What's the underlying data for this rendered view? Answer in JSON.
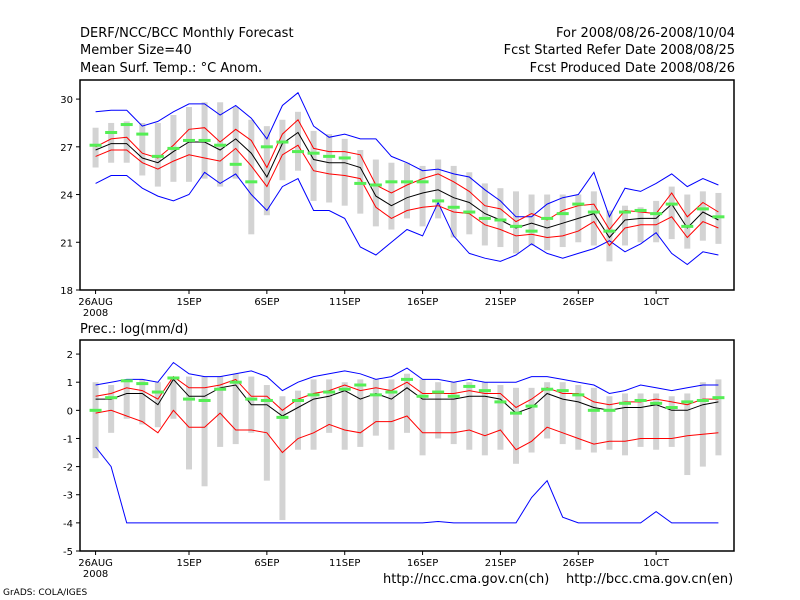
{
  "header": {
    "title": "DERF/NCC/BCC Monthly Forecast",
    "member_size": "Member Size=40",
    "variable": "Mean Surf. Temp.: °C Anom.",
    "period": "For 2008/08/26-2008/10/04",
    "started": "Fcst Started Refer Date 2008/08/25",
    "produced": "Fcst Produced Date 2008/08/26"
  },
  "precip_title": "Prec.: log(mm/d)",
  "footer": {
    "url_ncc": "http://ncc.cma.gov.cn(ch)",
    "url_bcc": "http://bcc.cma.gov.cn(en)",
    "credit": "GrADS: COLA/IGES"
  },
  "colors": {
    "envelope": "#0000ff",
    "spread": "#ff0000",
    "mean": "#000000",
    "box": "#d3d3d3",
    "marker": "#55ee55"
  },
  "chart_data": [
    {
      "type": "line",
      "title": "Mean Surf. Temp.: °C Anom.",
      "x_ticks": [
        {
          "day": 0,
          "label": "26AUG",
          "sublabel": "2008"
        },
        {
          "day": 6,
          "label": "1SEP"
        },
        {
          "day": 11,
          "label": "6SEP"
        },
        {
          "day": 16,
          "label": "11SEP"
        },
        {
          "day": 21,
          "label": "16SEP"
        },
        {
          "day": 26,
          "label": "21SEP"
        },
        {
          "day": 31,
          "label": "26SEP"
        },
        {
          "day": 36,
          "label": "10CT"
        }
      ],
      "y_ticks": [
        18,
        21,
        24,
        27,
        30
      ],
      "ylim": [
        18,
        31.2
      ],
      "xlim": [
        -1,
        41
      ],
      "series": [
        {
          "name": "max",
          "values": [
            24.7,
            25.2,
            25.2,
            24.4,
            23.9,
            23.6,
            24.0,
            25.4,
            24.7,
            25.3,
            24.0,
            23.0,
            24.5,
            25.0,
            23.0,
            23.0,
            22.5,
            20.7,
            20.2,
            21.0,
            21.8,
            21.4,
            23.5,
            21.4,
            20.3,
            20.0,
            19.8,
            20.2,
            20.9,
            20.3,
            20.0,
            20.3,
            20.6,
            21.1,
            20.4,
            20.9,
            21.6,
            20.3,
            19.6,
            20.4,
            20.2
          ]
        },
        {
          "name": "min",
          "values": [
            29.2,
            29.3,
            29.3,
            28.3,
            28.6,
            29.2,
            29.7,
            29.7,
            29.0,
            29.6,
            28.8,
            27.5,
            29.6,
            30.4,
            28.3,
            27.6,
            27.8,
            27.5,
            27.5,
            26.4,
            26.0,
            25.5,
            25.6,
            25.3,
            25.1,
            24.3,
            23.6,
            22.6,
            22.6,
            23.4,
            23.8,
            24.0,
            25.4,
            22.6,
            24.4,
            24.2,
            24.7,
            25.3,
            24.5,
            25.0,
            24.6
          ]
        },
        {
          "name": "upper",
          "values": [
            27.0,
            27.5,
            27.6,
            26.6,
            26.3,
            27.1,
            28.1,
            28.2,
            27.3,
            28.1,
            27.4,
            25.7,
            27.8,
            28.7,
            26.9,
            26.7,
            26.7,
            26.5,
            24.6,
            24.1,
            24.6,
            25.0,
            25.3,
            24.8,
            24.2,
            23.3,
            23.1,
            22.3,
            22.8,
            22.4,
            23.0,
            23.3,
            23.4,
            21.8,
            23.0,
            22.9,
            22.8,
            24.1,
            22.6,
            23.5,
            22.9
          ]
        },
        {
          "name": "lower",
          "values": [
            26.4,
            26.8,
            26.8,
            26.0,
            25.6,
            26.1,
            26.5,
            26.3,
            26.1,
            26.9,
            25.8,
            24.5,
            26.5,
            27.1,
            25.5,
            25.3,
            25.2,
            25.0,
            23.2,
            22.5,
            23.0,
            23.2,
            23.3,
            22.9,
            22.8,
            22.1,
            21.8,
            21.4,
            21.5,
            21.3,
            21.4,
            21.7,
            22.3,
            20.8,
            21.9,
            22.1,
            22.1,
            22.6,
            21.3,
            22.3,
            21.9
          ]
        },
        {
          "name": "mean",
          "values": [
            26.8,
            27.2,
            27.2,
            26.3,
            26.0,
            26.7,
            27.3,
            27.3,
            26.8,
            27.5,
            26.6,
            25.1,
            27.2,
            27.9,
            26.2,
            26.0,
            26.0,
            25.7,
            23.9,
            23.3,
            23.8,
            24.1,
            24.3,
            23.8,
            23.5,
            22.8,
            22.4,
            21.9,
            22.2,
            21.9,
            22.2,
            22.5,
            22.8,
            21.3,
            22.4,
            22.5,
            22.5,
            23.4,
            21.9,
            22.9,
            22.4
          ]
        },
        {
          "name": "box_top",
          "values": [
            28.2,
            28.5,
            28.6,
            28.5,
            28.5,
            29.0,
            29.5,
            29.8,
            29.8,
            29.5,
            28.7,
            28.3,
            28.7,
            29.2,
            28.0,
            27.8,
            27.5,
            26.8,
            26.2,
            26.0,
            26.0,
            25.8,
            26.2,
            25.8,
            25.4,
            24.7,
            24.4,
            24.2,
            24.0,
            24.0,
            24.0,
            24.0,
            24.2,
            23.0,
            23.3,
            23.2,
            23.6,
            24.5,
            24.0,
            24.2,
            24.1
          ]
        },
        {
          "name": "box_bottom",
          "values": [
            25.7,
            26.0,
            26.0,
            25.2,
            24.5,
            24.8,
            24.8,
            25.0,
            24.5,
            25.0,
            21.5,
            22.7,
            24.9,
            25.5,
            23.6,
            23.5,
            23.3,
            22.8,
            22.0,
            21.8,
            22.5,
            22.0,
            22.5,
            21.3,
            21.5,
            20.8,
            20.7,
            20.3,
            20.8,
            20.5,
            20.7,
            21.0,
            20.8,
            19.8,
            20.8,
            21.0,
            21.0,
            21.2,
            20.6,
            21.1,
            20.9
          ]
        },
        {
          "name": "observed",
          "values": [
            27.1,
            27.9,
            28.4,
            27.8,
            26.4,
            26.9,
            27.4,
            27.4,
            27.1,
            25.9,
            24.8,
            27.0,
            27.3,
            26.7,
            26.6,
            26.4,
            26.3,
            24.7,
            24.6,
            24.8,
            24.8,
            24.8,
            23.6,
            23.2,
            22.9,
            22.5,
            22.4,
            22.0,
            21.7,
            22.5,
            22.8,
            23.4,
            22.9,
            21.7,
            22.9,
            23.0,
            22.8,
            23.4,
            22.0,
            23.1,
            22.6
          ]
        }
      ]
    },
    {
      "type": "line",
      "title": "Prec.: log(mm/d)",
      "x_ticks": [
        {
          "day": 0,
          "label": "26AUG",
          "sublabel": "2008"
        },
        {
          "day": 6,
          "label": "1SEP"
        },
        {
          "day": 11,
          "label": "6SEP"
        },
        {
          "day": 16,
          "label": "11SEP"
        },
        {
          "day": 21,
          "label": "16SEP"
        },
        {
          "day": 26,
          "label": "21SEP"
        },
        {
          "day": 31,
          "label": "26SEP"
        },
        {
          "day": 36,
          "label": "10CT"
        }
      ],
      "y_ticks": [
        -5,
        -4,
        -3,
        -2,
        -1,
        0,
        1,
        2
      ],
      "ylim": [
        -5,
        2.5
      ],
      "xlim": [
        -1,
        41
      ],
      "series": [
        {
          "name": "max",
          "values": [
            0.9,
            1.0,
            1.1,
            1.1,
            1.0,
            1.7,
            1.3,
            1.2,
            1.2,
            1.3,
            1.4,
            1.2,
            0.7,
            1.0,
            1.2,
            1.3,
            1.4,
            1.3,
            1.1,
            1.2,
            1.5,
            1.1,
            1.1,
            1.0,
            1.1,
            1.0,
            1.0,
            1.0,
            1.2,
            1.2,
            1.1,
            1.0,
            0.9,
            0.6,
            0.7,
            0.9,
            0.8,
            0.7,
            0.8,
            0.9,
            0.9
          ]
        },
        {
          "name": "min",
          "values": [
            -1.3,
            -2.0,
            -4.0,
            -4.0,
            -4.0,
            -4.0,
            -4.0,
            -4.0,
            -4.0,
            -4.0,
            -4.0,
            -4.0,
            -4.0,
            -4.0,
            -4.0,
            -4.0,
            -4.0,
            -4.0,
            -4.0,
            -4.0,
            -4.0,
            -4.0,
            -3.95,
            -4.0,
            -4.0,
            -4.0,
            -4.0,
            -4.0,
            -3.1,
            -2.5,
            -3.8,
            -4.0,
            -4.0,
            -4.0,
            -4.0,
            -4.0,
            -3.6,
            -4.0,
            -4.0,
            -4.0,
            -4.0
          ]
        },
        {
          "name": "upper",
          "values": [
            0.5,
            0.6,
            0.8,
            0.7,
            0.4,
            1.2,
            0.8,
            0.8,
            0.9,
            1.1,
            0.5,
            0.5,
            0.0,
            0.4,
            0.6,
            0.7,
            0.9,
            0.7,
            0.8,
            0.7,
            1.0,
            0.6,
            0.6,
            0.6,
            0.7,
            0.6,
            0.6,
            0.1,
            0.4,
            0.8,
            0.6,
            0.6,
            0.3,
            0.2,
            0.3,
            0.3,
            0.4,
            0.3,
            0.2,
            0.4,
            0.4
          ]
        },
        {
          "name": "lower",
          "values": [
            -0.1,
            0.0,
            -0.2,
            -0.4,
            -0.8,
            0.0,
            -0.6,
            -0.6,
            -0.1,
            -0.7,
            -0.7,
            -0.8,
            -1.5,
            -1.0,
            -0.8,
            -0.5,
            -0.7,
            -0.8,
            -0.4,
            -0.4,
            -0.2,
            -0.8,
            -0.8,
            -0.8,
            -0.7,
            -0.9,
            -0.7,
            -1.4,
            -1.1,
            -0.6,
            -0.8,
            -1.0,
            -1.2,
            -1.1,
            -1.1,
            -1.0,
            -1.0,
            -1.0,
            -0.9,
            -0.85,
            -0.8
          ]
        },
        {
          "name": "mean",
          "values": [
            0.4,
            0.4,
            0.6,
            0.6,
            0.2,
            1.1,
            0.5,
            0.5,
            0.8,
            0.9,
            0.2,
            0.2,
            -0.2,
            0.1,
            0.4,
            0.5,
            0.7,
            0.4,
            0.6,
            0.4,
            0.8,
            0.4,
            0.4,
            0.4,
            0.5,
            0.5,
            0.4,
            -0.1,
            0.1,
            0.6,
            0.4,
            0.3,
            0.1,
            0.0,
            0.1,
            0.1,
            0.2,
            0.0,
            0.0,
            0.2,
            0.3
          ]
        },
        {
          "name": "box_top",
          "values": [
            1.0,
            0.9,
            1.1,
            1.1,
            1.0,
            1.2,
            1.2,
            1.2,
            1.2,
            1.3,
            1.2,
            0.9,
            0.5,
            0.7,
            1.1,
            1.1,
            1.0,
            1.1,
            1.1,
            1.1,
            1.3,
            1.1,
            1.0,
            1.0,
            1.0,
            1.0,
            0.9,
            0.8,
            0.8,
            1.0,
            1.0,
            0.9,
            0.8,
            0.5,
            0.6,
            0.6,
            0.6,
            0.5,
            0.6,
            1.0,
            1.1
          ]
        },
        {
          "name": "box_bottom",
          "values": [
            -1.7,
            -0.8,
            -0.3,
            -0.5,
            -0.6,
            -0.3,
            -2.1,
            -2.7,
            -1.3,
            -1.2,
            -0.8,
            -2.5,
            -3.9,
            -1.4,
            -1.4,
            -0.8,
            -1.4,
            -1.3,
            -0.9,
            -1.4,
            -0.8,
            -1.6,
            -1.0,
            -1.2,
            -1.4,
            -1.6,
            -1.4,
            -1.9,
            -1.5,
            -1.0,
            -1.2,
            -1.4,
            -1.5,
            -1.4,
            -1.6,
            -1.3,
            -1.4,
            -1.3,
            -2.3,
            -2.0,
            -1.6
          ]
        },
        {
          "name": "observed",
          "values": [
            0.0,
            0.45,
            1.05,
            0.95,
            0.65,
            1.15,
            0.4,
            0.35,
            0.75,
            1.0,
            0.4,
            0.35,
            -0.25,
            0.35,
            0.55,
            0.65,
            0.75,
            0.9,
            0.55,
            0.65,
            1.1,
            0.5,
            0.65,
            0.5,
            0.85,
            0.7,
            0.3,
            -0.1,
            0.15,
            0.75,
            0.7,
            0.55,
            0.0,
            0.0,
            0.25,
            0.35,
            0.25,
            0.1,
            0.3,
            0.35,
            0.45
          ]
        }
      ]
    }
  ]
}
